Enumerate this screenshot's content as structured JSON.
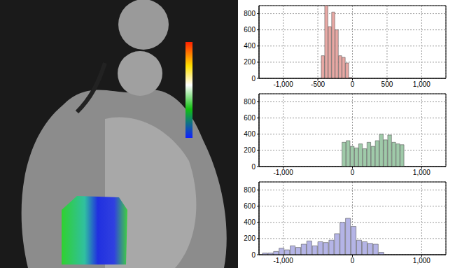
{
  "chart_data": [
    {
      "type": "histogram",
      "bins": [
        -450,
        -400,
        -350,
        -300,
        -250,
        -200,
        -150,
        -100,
        -50,
        0
      ],
      "values": [
        280,
        900,
        640,
        820,
        600,
        280,
        260,
        190,
        10
      ],
      "color": "#e8a8a4",
      "xlim": [
        -1350,
        1350
      ],
      "xticks": [
        {
          "value": -1000,
          "label": "-1,000"
        },
        -500,
        0,
        500,
        {
          "value": 1000,
          "label": "1,000"
        }
      ],
      "ylim": [
        0,
        900
      ],
      "yticks": [
        0,
        200,
        400,
        600,
        800
      ],
      "grid": true
    },
    {
      "type": "histogram",
      "bins": [
        -150,
        -90,
        -30,
        30,
        90,
        150,
        210,
        270,
        330,
        390,
        450,
        510,
        570,
        630,
        690,
        750
      ],
      "values": [
        300,
        320,
        250,
        230,
        280,
        220,
        300,
        250,
        320,
        400,
        330,
        390,
        300,
        280,
        270
      ],
      "color": "#9fcaa9",
      "xlim": [
        -1350,
        1350
      ],
      "xticks": [
        {
          "value": -1000,
          "label": "-1,000"
        },
        0,
        {
          "value": 1000,
          "label": "1,000"
        }
      ],
      "ylim": [
        0,
        900
      ],
      "yticks": [
        0,
        200,
        400,
        600,
        800
      ],
      "grid": true
    },
    {
      "type": "histogram",
      "bins": [
        -1300,
        -1220,
        -1140,
        -1060,
        -980,
        -900,
        -820,
        -740,
        -660,
        -580,
        -500,
        -420,
        -340,
        -260,
        -180,
        -100,
        -20,
        60,
        140,
        220,
        300,
        380,
        460
      ],
      "values": [
        20,
        20,
        40,
        80,
        60,
        110,
        90,
        130,
        170,
        110,
        160,
        150,
        180,
        260,
        400,
        450,
        350,
        180,
        160,
        140,
        130,
        30
      ],
      "color": "#b4b4e6",
      "xlim": [
        -1350,
        1350
      ],
      "xticks": [
        {
          "value": -1000,
          "label": "-1,000"
        },
        0,
        {
          "value": 1000,
          "label": "1,000"
        }
      ],
      "ylim": [
        0,
        900
      ],
      "yticks": [
        0,
        200,
        400,
        600,
        800
      ],
      "grid": true
    }
  ]
}
